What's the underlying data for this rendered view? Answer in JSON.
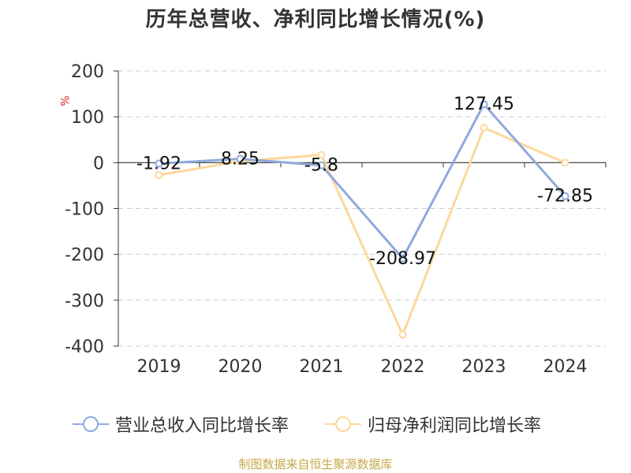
{
  "title": "历年总营收、净利同比增长情况(%)",
  "unit": "%",
  "source": "制图数据来自恒生聚源数据库",
  "chart_data": {
    "type": "line",
    "title": "历年总营收、净利同比增长情况(%)",
    "ylabel": "%",
    "categories": [
      "2019",
      "2020",
      "2021",
      "2022",
      "2023",
      "2024"
    ],
    "ylim": [
      -400,
      200
    ],
    "yticks": [
      200,
      100,
      0,
      -100,
      -200,
      -300,
      -400
    ],
    "grid": true,
    "legend_position": "bottom",
    "series": [
      {
        "name": "营业总收入同比增长率",
        "color": "#8faadc",
        "values": [
          -1.92,
          8.25,
          -5.8,
          -208.97,
          127.45,
          -72.85
        ],
        "labels": [
          "-1.92",
          "8.25",
          "-5.8",
          "-208.97",
          "127.45",
          "-72.85"
        ]
      },
      {
        "name": "归母净利润同比增长率",
        "color": "#fdd89b",
        "values": [
          -27,
          3,
          17,
          -375,
          76,
          0
        ]
      }
    ]
  }
}
